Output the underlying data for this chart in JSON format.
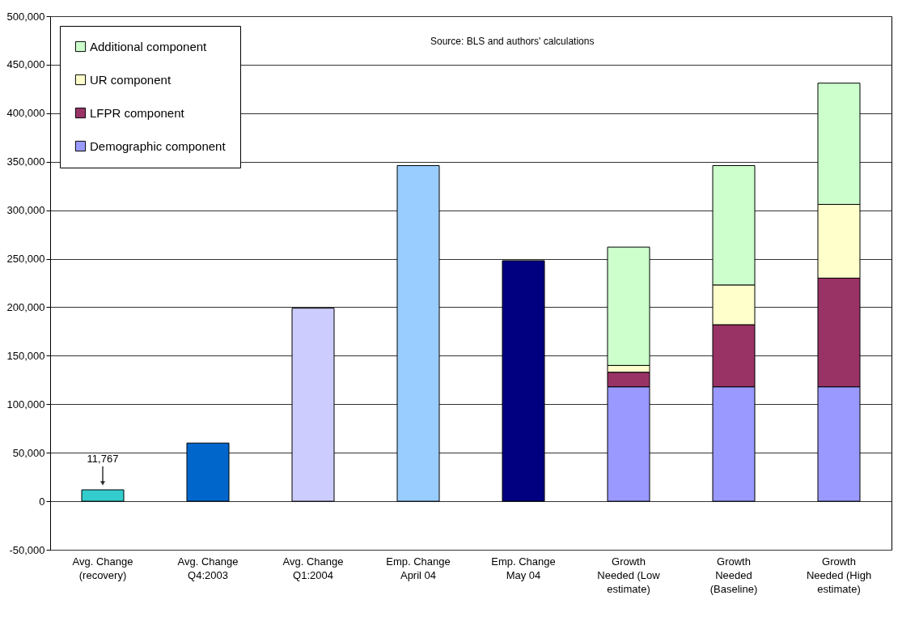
{
  "chart_data": {
    "type": "bar",
    "stacked": true,
    "categories": [
      "Avg. Change\n(recovery)",
      "Avg. Change\nQ4:2003",
      "Avg. Change\nQ1:2004",
      "Emp. Change\nApril 04",
      "Emp. Change\nMay 04",
      "Growth\nNeeded (Low\nestimate)",
      "Growth\nNeeded\n(Baseline)",
      "Growth\nNeeded (High\nestimate)"
    ],
    "series": [
      {
        "colors": [
          "#33cccc",
          "#0066cc",
          "#ccccff",
          "#99ccff",
          "#000080",
          null,
          null,
          null
        ],
        "values": [
          11767,
          60000,
          199000,
          346000,
          248000,
          null,
          null,
          null
        ],
        "value_labels": [
          "11,767",
          null,
          null,
          null,
          null,
          null,
          null,
          null
        ]
      },
      {
        "name": "Demographic component",
        "color": "#9999ff",
        "values": [
          null,
          null,
          null,
          null,
          null,
          118000,
          118000,
          118000
        ]
      },
      {
        "name": "LFPR component",
        "color": "#993366",
        "values": [
          null,
          null,
          null,
          null,
          null,
          15000,
          64000,
          112000
        ]
      },
      {
        "name": "UR component",
        "color": "#ffffcc",
        "values": [
          null,
          null,
          null,
          null,
          null,
          7000,
          41000,
          76000
        ]
      },
      {
        "name": "Additional component",
        "color": "#ccffcc",
        "values": [
          null,
          null,
          null,
          null,
          null,
          122000,
          123000,
          125000
        ]
      }
    ],
    "ylim": [
      -50000,
      500000
    ],
    "yticks": [
      {
        "value": -50000,
        "label": "-50,000"
      },
      {
        "value": 0,
        "label": "0"
      },
      {
        "value": 50000,
        "label": "50,000"
      },
      {
        "value": 100000,
        "label": "100,000"
      },
      {
        "value": 150000,
        "label": "150,000"
      },
      {
        "value": 200000,
        "label": "200,000"
      },
      {
        "value": 250000,
        "label": "250,000"
      },
      {
        "value": 300000,
        "label": "300,000"
      },
      {
        "value": 350000,
        "label": "350,000"
      },
      {
        "value": 400000,
        "label": "400,000"
      },
      {
        "value": 450000,
        "label": "450,000"
      },
      {
        "value": 500000,
        "label": "500,000"
      }
    ],
    "grid": "y",
    "legend": "top left",
    "annotations": [
      "Source: BLS and authors' calculations"
    ]
  }
}
